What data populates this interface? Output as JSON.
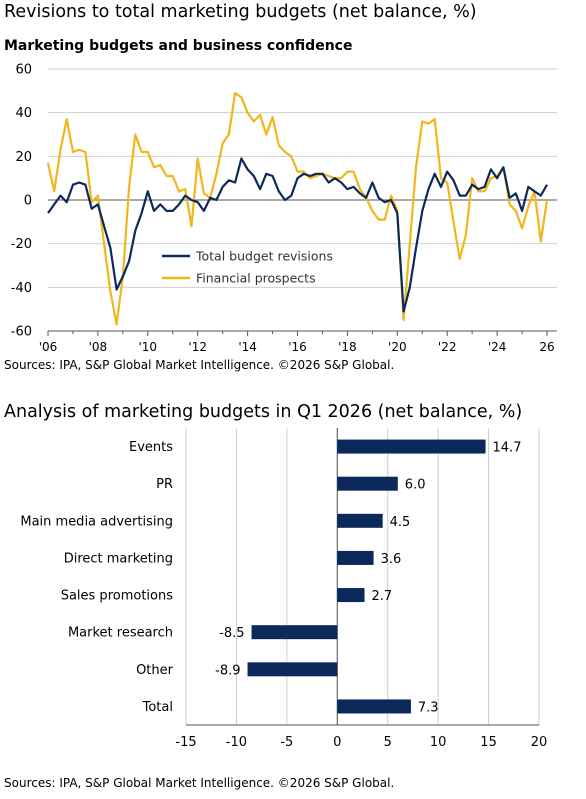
{
  "page": {
    "title": "Revisions to total marketing budgets (net balance, %)",
    "source_1": "Sources: IPA, S&P Global Market Intelligence. ©2026 S&P Global.",
    "source_2": "Sources: IPA, S&P Global Market Intelligence. ©2026 S&P Global."
  },
  "colors": {
    "navy": "#0b2a5b",
    "gold": "#f2b61c",
    "grid": "#cfcfcf",
    "axis": "#555555"
  },
  "chart_data": [
    {
      "type": "line",
      "title": "Marketing budgets and business confidence",
      "xlabel": "",
      "ylabel": "",
      "ylim": [
        -60,
        60
      ],
      "yticks": [
        "60",
        "40",
        "20",
        "0",
        "-20",
        "-40",
        "-60"
      ],
      "xlim": [
        2006.0,
        2026.4
      ],
      "xticks": [
        "'06",
        "'08",
        "'10",
        "'12",
        "'14",
        "'16",
        "'18",
        "'20",
        "'22",
        "'24",
        "26"
      ],
      "grid": true,
      "legend": "lower-center",
      "series": [
        {
          "name": "Total budget revisions",
          "color": "#0b2a5b",
          "x": [
            2006.0,
            2006.25,
            2006.5,
            2006.75,
            2007.0,
            2007.25,
            2007.5,
            2007.75,
            2008.0,
            2008.25,
            2008.5,
            2008.75,
            2009.0,
            2009.25,
            2009.5,
            2009.75,
            2010.0,
            2010.25,
            2010.5,
            2010.75,
            2011.0,
            2011.25,
            2011.5,
            2011.75,
            2012.0,
            2012.25,
            2012.5,
            2012.75,
            2013.0,
            2013.25,
            2013.5,
            2013.75,
            2014.0,
            2014.25,
            2014.5,
            2014.75,
            2015.0,
            2015.25,
            2015.5,
            2015.75,
            2016.0,
            2016.25,
            2016.5,
            2016.75,
            2017.0,
            2017.25,
            2017.5,
            2017.75,
            2018.0,
            2018.25,
            2018.5,
            2018.75,
            2019.0,
            2019.25,
            2019.5,
            2019.75,
            2020.0,
            2020.25,
            2020.5,
            2020.75,
            2021.0,
            2021.25,
            2021.5,
            2021.75,
            2022.0,
            2022.25,
            2022.5,
            2022.75,
            2023.0,
            2023.25,
            2023.5,
            2023.75,
            2024.0,
            2024.25,
            2024.5,
            2024.75,
            2025.0,
            2025.25,
            2025.5,
            2025.75,
            2026.0
          ],
          "y": [
            -6,
            -2,
            2,
            -1,
            7,
            8,
            7,
            -4,
            -2,
            -12,
            -22,
            -41,
            -35,
            -28,
            -14,
            -6,
            4,
            -5,
            -2,
            -5,
            -5,
            -2,
            2,
            0,
            -1,
            -5,
            1,
            0,
            6,
            9,
            8,
            19,
            14,
            11,
            5,
            12,
            11,
            4,
            0,
            2,
            10,
            12,
            11,
            12,
            12,
            8,
            10,
            8,
            5,
            6,
            3,
            1,
            8,
            1,
            -1,
            0,
            -6,
            -51,
            -40,
            -22,
            -5,
            5,
            12,
            6,
            13,
            9,
            2,
            2,
            7,
            5,
            6,
            14,
            10,
            15,
            1,
            3,
            -5,
            6,
            4,
            2,
            7
          ]
        },
        {
          "name": "Financial prospects",
          "color": "#f2b61c",
          "x": [
            2006.0,
            2006.25,
            2006.5,
            2006.75,
            2007.0,
            2007.25,
            2007.5,
            2007.75,
            2008.0,
            2008.25,
            2008.5,
            2008.75,
            2009.0,
            2009.25,
            2009.5,
            2009.75,
            2010.0,
            2010.25,
            2010.5,
            2010.75,
            2011.0,
            2011.25,
            2011.5,
            2011.75,
            2012.0,
            2012.25,
            2012.5,
            2012.75,
            2013.0,
            2013.25,
            2013.5,
            2013.75,
            2014.0,
            2014.25,
            2014.5,
            2014.75,
            2015.0,
            2015.25,
            2015.5,
            2015.75,
            2016.0,
            2016.25,
            2016.5,
            2016.75,
            2017.0,
            2017.25,
            2017.5,
            2017.75,
            2018.0,
            2018.25,
            2018.5,
            2018.75,
            2019.0,
            2019.25,
            2019.5,
            2019.75,
            2020.0,
            2020.25,
            2020.5,
            2020.75,
            2021.0,
            2021.25,
            2021.5,
            2021.75,
            2022.0,
            2022.25,
            2022.5,
            2022.75,
            2023.0,
            2023.25,
            2023.5,
            2023.75,
            2024.0,
            2024.25,
            2024.5,
            2024.75,
            2025.0,
            2025.25,
            2025.5,
            2025.75,
            2026.0
          ],
          "y": [
            17,
            4,
            23,
            37,
            22,
            23,
            22,
            -1,
            2,
            -20,
            -42,
            -57,
            -35,
            6,
            30,
            22,
            22,
            15,
            16,
            11,
            11,
            4,
            5,
            -12,
            19,
            3,
            1,
            12,
            26,
            30,
            49,
            47,
            40,
            36,
            39,
            30,
            38,
            25,
            22,
            20,
            13,
            13,
            10,
            11,
            12,
            11,
            10,
            10,
            13,
            13,
            5,
            1,
            -5,
            -9,
            -9,
            2,
            -5,
            -55,
            -20,
            15,
            36,
            35,
            37,
            10,
            8,
            -10,
            -27,
            -16,
            10,
            4,
            4,
            10,
            11,
            15,
            -2,
            -5,
            -13,
            -3,
            4,
            -19,
            0
          ]
        }
      ]
    },
    {
      "type": "bar",
      "orientation": "horizontal",
      "title": "Analysis of marketing budgets in Q1 2026 (net balance, %)",
      "xlabel": "",
      "ylabel": "",
      "xlim": [
        -15,
        20
      ],
      "xticks": [
        "-15",
        "-10",
        "-5",
        "0",
        "5",
        "10",
        "15",
        "20"
      ],
      "grid": true,
      "color": "#0b2a5b",
      "categories": [
        "Events",
        "PR",
        "Main media advertising",
        "Direct marketing",
        "Sales promotions",
        "Market research",
        "Other",
        "Total"
      ],
      "values": [
        14.7,
        6.0,
        4.5,
        3.6,
        2.7,
        -8.5,
        -8.9,
        7.3
      ],
      "value_labels": [
        "14.7",
        "6.0",
        "4.5",
        "3.6",
        "2.7",
        "-8.5",
        "-8.9",
        "7.3"
      ]
    }
  ]
}
